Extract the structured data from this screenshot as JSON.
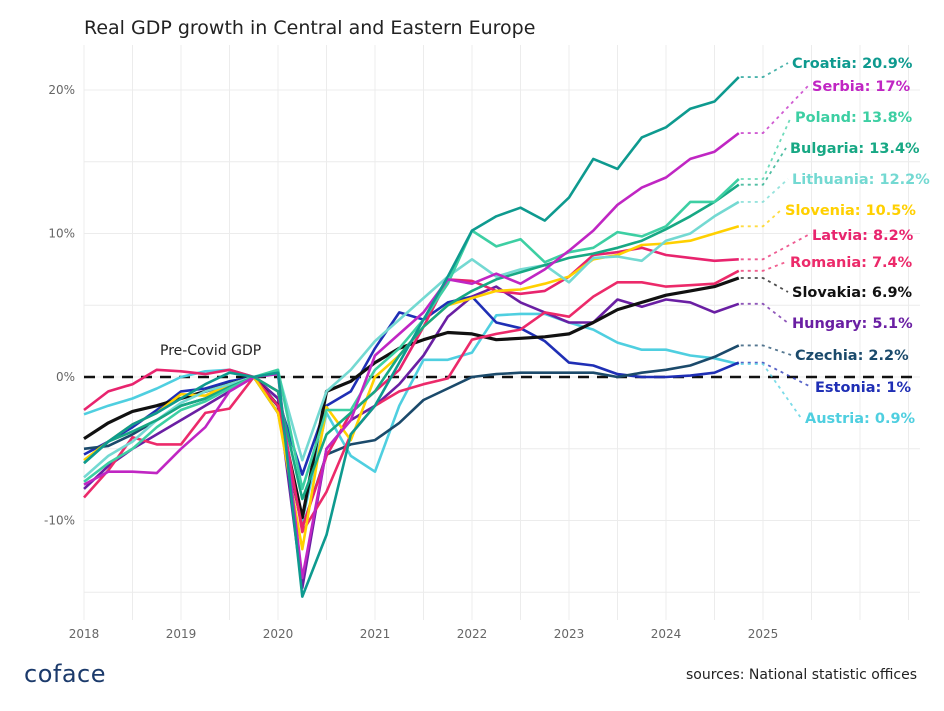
{
  "title": "Real GDP growth in Central and Eastern Europe",
  "source": "sources: National statistic offices",
  "logo": "coface",
  "chart_data": {
    "type": "line",
    "title": "Real GDP growth in Central and Eastern Europe",
    "xlabel": "",
    "ylabel": "",
    "x_start": "2018-Q1",
    "frequency": "quarterly",
    "x_ticks": [
      "2018",
      "2019",
      "2020",
      "2021",
      "2022",
      "2023",
      "2024",
      "2025"
    ],
    "y_ticks": [
      {
        "v": 20,
        "label": "20%"
      },
      {
        "v": 10,
        "label": "10%"
      },
      {
        "v": 0,
        "label": "0%"
      },
      {
        "v": -10,
        "label": "-10%"
      }
    ],
    "xlim": [
      2018,
      2026.6
    ],
    "ylim": [
      -16.5,
      23.5
    ],
    "grid": true,
    "reference_line": {
      "value": 0,
      "label": "Pre-Covid GDP",
      "style": "dashed",
      "color": "#000000"
    },
    "series": [
      {
        "name": "Croatia",
        "label": "Croatia: 20.9%",
        "color": "#0E9A8F",
        "values": [
          -6,
          -4.5,
          -3.3,
          -2.5,
          -1.5,
          -0.5,
          0.3,
          0,
          0.3,
          -15.3,
          -11,
          -4,
          -2,
          1,
          4,
          7,
          10.2,
          11.2,
          11.8,
          10.9,
          12.5,
          15.2,
          14.5,
          16.7,
          17.4,
          18.7,
          19.2,
          20.9
        ]
      },
      {
        "name": "Serbia",
        "label": "Serbia: 17%",
        "color": "#C026C3",
        "values": [
          -7.5,
          -6.6,
          -6.6,
          -6.7,
          -5,
          -3.5,
          -1,
          0,
          0.2,
          -14,
          -5,
          -3,
          1.5,
          3,
          4.5,
          6.8,
          6.5,
          7.2,
          6.5,
          7.5,
          8.8,
          10.2,
          12,
          13.2,
          13.9,
          15.2,
          15.7,
          17
        ]
      },
      {
        "name": "Poland",
        "label": "Poland: 13.8%",
        "color": "#3DCFA3",
        "values": [
          -7.3,
          -6,
          -5,
          -3.5,
          -2.3,
          -1.7,
          -0.8,
          0,
          0.5,
          -7.8,
          -2.3,
          -2.3,
          0.5,
          2,
          4,
          6.5,
          10.2,
          9.1,
          9.6,
          8,
          8.7,
          9,
          10.1,
          9.8,
          10.5,
          12.2,
          12.2,
          13.8
        ]
      },
      {
        "name": "Bulgaria",
        "label": "Bulgaria: 13.4%",
        "color": "#17A884",
        "values": [
          -6,
          -4.5,
          -3.8,
          -3,
          -2,
          -1.5,
          -0.7,
          0,
          -1,
          -8.5,
          -4,
          -2.5,
          -1,
          1.5,
          3.5,
          5,
          6,
          6.8,
          7.3,
          7.8,
          8.3,
          8.6,
          9,
          9.5,
          10.3,
          11.2,
          12.2,
          13.4
        ]
      },
      {
        "name": "Lithuania",
        "label": "Lithuania: 12.2%",
        "color": "#74D9D2",
        "values": [
          -7,
          -5.5,
          -4.5,
          -3,
          -1.8,
          -1,
          -0.5,
          0,
          0.3,
          -5.8,
          -1,
          0.5,
          2.5,
          4,
          5.5,
          7,
          8.2,
          7,
          7.5,
          7.8,
          6.6,
          8.3,
          8.4,
          8.1,
          9.5,
          10,
          11.2,
          12.2
        ]
      },
      {
        "name": "Slovenia",
        "label": "Slovenia: 10.5%",
        "color": "#FFD000",
        "values": [
          -5.8,
          -4.5,
          -3.3,
          -2.5,
          -1.2,
          -1.3,
          -0.5,
          0,
          -2.5,
          -12,
          -2.1,
          -4.4,
          0,
          1.5,
          3.5,
          5,
          5.5,
          6,
          6.1,
          6.5,
          7,
          8.2,
          8.5,
          9.2,
          9.3,
          9.5,
          10,
          10.5
        ]
      },
      {
        "name": "Latvia",
        "label": "Latvia: 8.2%",
        "color": "#E8246E",
        "values": [
          -2.3,
          -1,
          -0.5,
          0.5,
          0.4,
          0.2,
          0.5,
          0,
          -2,
          -10.5,
          -5.5,
          -2.5,
          -1,
          0.5,
          3.5,
          6.8,
          6.7,
          6,
          5.8,
          6,
          7,
          8.5,
          8.7,
          9,
          8.5,
          8.3,
          8.1,
          8.2
        ]
      },
      {
        "name": "Romania",
        "label": "Romania: 7.4%",
        "color": "#EC2A6A",
        "values": [
          -8.4,
          -6.5,
          -4.2,
          -4.7,
          -4.7,
          -2.5,
          -2.2,
          0,
          -1,
          -10.8,
          -8,
          -4,
          -2,
          -1,
          -0.5,
          -0.1,
          2.6,
          3,
          3.3,
          4.5,
          4.2,
          5.6,
          6.6,
          6.6,
          6.3,
          6.4,
          6.5,
          7.4
        ]
      },
      {
        "name": "Slovakia",
        "label": "Slovakia: 6.9%",
        "color": "#111111",
        "values": [
          -4.3,
          -3.2,
          -2.4,
          -2,
          -1.5,
          -1,
          -0.5,
          0,
          -2,
          -9.8,
          -1,
          -0.3,
          1,
          2,
          2.6,
          3.1,
          3,
          2.6,
          2.7,
          2.8,
          3,
          3.8,
          4.7,
          5.2,
          5.7,
          6,
          6.3,
          6.9
        ]
      },
      {
        "name": "Hungary",
        "label": "Hungary: 5.1%",
        "color": "#6A1FA3",
        "values": [
          -7.8,
          -6.2,
          -5,
          -4,
          -3,
          -2,
          -1,
          0,
          -1.5,
          -14.7,
          -5,
          -3,
          -2,
          -0.5,
          1.5,
          4.2,
          5.6,
          6.3,
          5.2,
          4.5,
          3.8,
          3.8,
          5.4,
          4.9,
          5.4,
          5.2,
          4.5,
          5.1
        ]
      },
      {
        "name": "Czechia",
        "label": "Czechia: 2.2%",
        "color": "#1B4A6B",
        "values": [
          -5,
          -4.8,
          -4,
          -3,
          -2,
          -1.5,
          -0.5,
          0,
          -2.5,
          -10.5,
          -5.4,
          -4.7,
          -4.4,
          -3.2,
          -1.6,
          -0.8,
          0,
          0.2,
          0.3,
          0.3,
          0.3,
          0.3,
          0,
          0.3,
          0.5,
          0.8,
          1.4,
          2.2
        ]
      },
      {
        "name": "Estonia",
        "label": "Estonia: 1%",
        "color": "#1F2FB5",
        "values": [
          -5.4,
          -4.5,
          -3.5,
          -2.3,
          -1,
          -0.8,
          -0.3,
          0,
          -1.5,
          -6.8,
          -2,
          -1,
          2,
          4.5,
          4,
          5.2,
          5.6,
          3.8,
          3.4,
          2.5,
          1,
          0.8,
          0.2,
          0,
          0,
          0.1,
          0.3,
          1
        ]
      },
      {
        "name": "Austria",
        "label": "Austria: 0.9%",
        "color": "#4FCFE0",
        "values": [
          -2.6,
          -2,
          -1.5,
          -0.8,
          0,
          0.4,
          0.5,
          0,
          -2.5,
          -10,
          -2.5,
          -5.5,
          -6.6,
          -2,
          1.2,
          1.2,
          1.7,
          4.3,
          4.4,
          4.4,
          3.8,
          3.3,
          2.4,
          1.9,
          1.9,
          1.5,
          1.3,
          0.9
        ]
      }
    ]
  }
}
